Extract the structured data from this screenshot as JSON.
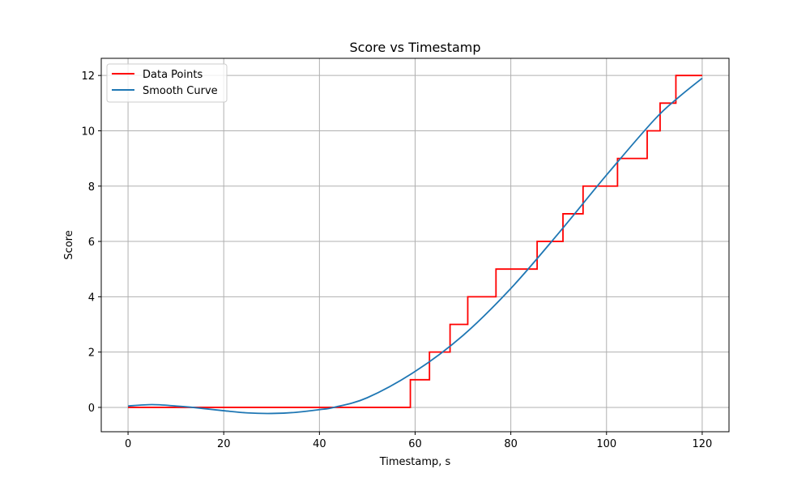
{
  "chart_data": {
    "type": "line",
    "title": "Score vs Timestamp",
    "xlabel": "Timestamp, s",
    "ylabel": "Score",
    "xlim": [
      -5.6,
      125.6
    ],
    "ylim": [
      -0.88,
      12.62
    ],
    "xticks": [
      0,
      20,
      40,
      60,
      80,
      100,
      120
    ],
    "yticks": [
      0,
      2,
      4,
      6,
      8,
      10,
      12
    ],
    "grid": true,
    "legend_position": "top-left",
    "series": [
      {
        "name": "Data Points",
        "color": "#ff0000",
        "kind": "step",
        "x": [
          0,
          59,
          59,
          63,
          63,
          67.3,
          67.3,
          71,
          71,
          76.9,
          76.9,
          85.5,
          85.5,
          90.9,
          90.9,
          95.1,
          95.1,
          102.3,
          102.3,
          108.5,
          108.5,
          111.2,
          111.2,
          114.5,
          114.5,
          120
        ],
        "y": [
          0,
          0,
          1,
          1,
          2,
          2,
          3,
          3,
          4,
          4,
          5,
          5,
          6,
          6,
          7,
          7,
          8,
          8,
          9,
          9,
          10,
          10,
          11,
          11,
          12,
          12
        ]
      },
      {
        "name": "Smooth Curve",
        "color": "#1f77b4",
        "kind": "line",
        "x": [
          0,
          5,
          10,
          13.5,
          20,
          25,
          30,
          35,
          40,
          43,
          50,
          60,
          70,
          80,
          90,
          100,
          110,
          115,
          120
        ],
        "y": [
          0.05,
          0.1,
          0.05,
          0,
          -0.12,
          -0.2,
          -0.22,
          -0.18,
          -0.08,
          0,
          0.35,
          1.3,
          2.6,
          4.3,
          6.3,
          8.4,
          10.4,
          11.2,
          11.9
        ]
      }
    ]
  }
}
